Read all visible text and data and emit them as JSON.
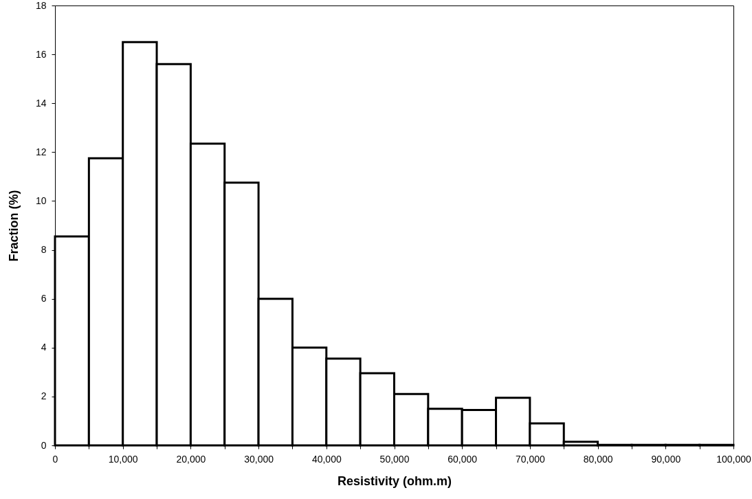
{
  "chart_data": {
    "type": "histogram",
    "xlabel": "Resistivity (ohm.m)",
    "ylabel": "Fraction (%)",
    "bins": [
      0,
      5000,
      10000,
      15000,
      20000,
      25000,
      30000,
      35000,
      40000,
      45000,
      50000,
      55000,
      60000,
      65000,
      70000,
      75000,
      80000,
      85000,
      90000,
      95000,
      100000
    ],
    "values": [
      8.55,
      11.75,
      16.5,
      15.6,
      12.35,
      10.75,
      6.0,
      4.0,
      3.55,
      2.95,
      2.1,
      1.5,
      1.45,
      1.95,
      0.9,
      0.15,
      0.02,
      0.02,
      0.02,
      0.02
    ],
    "color": "#ffffff",
    "xlim": [
      0,
      100000
    ],
    "xticks": [
      0,
      {
        "value": 5000,
        "label": null
      },
      {
        "value": 10000,
        "label": "10,000"
      },
      {
        "value": 15000,
        "label": null
      },
      {
        "value": 20000,
        "label": "20,000"
      },
      {
        "value": 25000,
        "label": null
      },
      {
        "value": 30000,
        "label": "30,000"
      },
      {
        "value": 35000,
        "label": null
      },
      {
        "value": 40000,
        "label": "40,000"
      },
      {
        "value": 45000,
        "label": null
      },
      {
        "value": 50000,
        "label": "50,000"
      },
      {
        "value": 55000,
        "label": null
      },
      {
        "value": 60000,
        "label": "60,000"
      },
      {
        "value": 65000,
        "label": null
      },
      {
        "value": 70000,
        "label": "70,000"
      },
      {
        "value": 75000,
        "label": null
      },
      {
        "value": 80000,
        "label": "80,000"
      },
      {
        "value": 85000,
        "label": null
      },
      {
        "value": 90000,
        "label": "90,000"
      },
      {
        "value": 95000,
        "label": null
      },
      {
        "value": 100000,
        "label": "100,000"
      }
    ],
    "ylim": [
      0,
      18
    ],
    "yticks": [
      0,
      2,
      4,
      6,
      8,
      10,
      12,
      14,
      16,
      18
    ],
    "grid": false
  }
}
